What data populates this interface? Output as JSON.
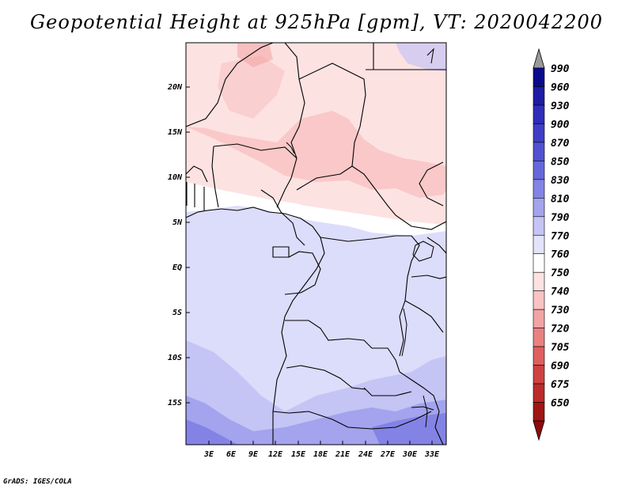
{
  "title": "Geopotential Height at 925hPa [gpm], VT: 2020042200",
  "credit": "GrADS: IGES/COLA",
  "map": {
    "lat_ticks": [
      "20N",
      "15N",
      "10N",
      "5N",
      "EQ",
      "5S",
      "10S",
      "15S"
    ],
    "lon_ticks": [
      "3E",
      "6E",
      "9E",
      "12E",
      "15E",
      "18E",
      "21E",
      "24E",
      "27E",
      "30E",
      "33E"
    ]
  },
  "colorbar": {
    "levels": [
      "990",
      "960",
      "930",
      "900",
      "870",
      "850",
      "830",
      "810",
      "790",
      "770",
      "760",
      "750",
      "740",
      "730",
      "720",
      "705",
      "690",
      "675",
      "650"
    ],
    "colors": [
      "#0a0a8c",
      "#1c1ca6",
      "#2e2eb8",
      "#3e3ec6",
      "#5151d2",
      "#6767dc",
      "#8383e6",
      "#a3a3ee",
      "#c4c4f5",
      "#e3e3fb",
      "#ffffff",
      "#fde2e2",
      "#f9c3c3",
      "#f3a3a3",
      "#ea8181",
      "#df5f5f",
      "#d04141",
      "#bc2a2a",
      "#a01515"
    ],
    "top_arrow_color": "#9a9a9a",
    "bottom_arrow_color": "#8c0c0c"
  }
}
